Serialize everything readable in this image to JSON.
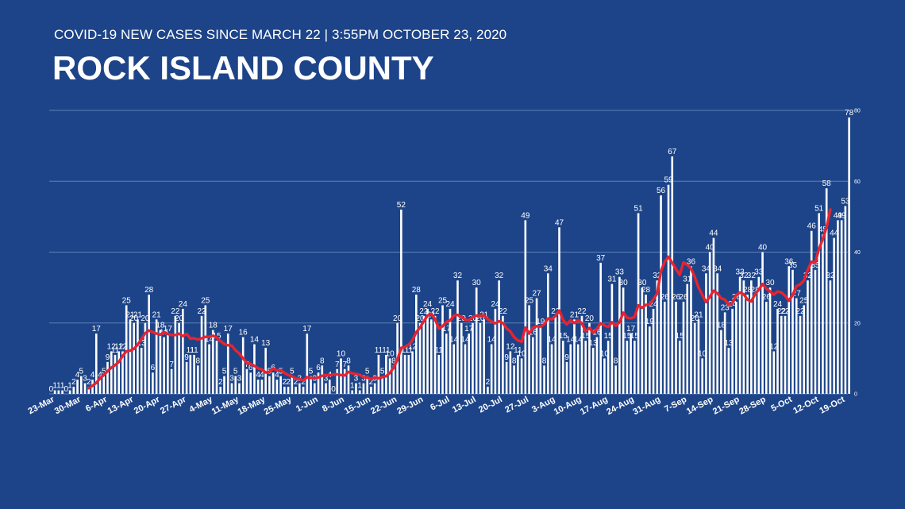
{
  "header": {
    "subtitle": "COVID-19 NEW CASES SINCE MARCH 22 | 3:55PM OCTOBER 23, 2020",
    "title": "ROCK ISLAND COUNTY"
  },
  "colors": {
    "background": "#1d4489",
    "bars": "#ffffff",
    "moving_average": "#e8232f",
    "gridlines": "#5f7fb8"
  },
  "chart_data": {
    "type": "bar",
    "title": "",
    "xlabel": "",
    "ylabel": "",
    "ylim": [
      0,
      80
    ],
    "yticks": [
      0,
      20,
      40,
      60,
      80
    ],
    "grid": true,
    "legend": "none",
    "start_date": "2020-03-22",
    "x_tick_labels": [
      "23-Mar",
      "30-Mar",
      "6-Apr",
      "13-Apr",
      "20-Apr",
      "27-Apr",
      "4-May",
      "11-May",
      "18-May",
      "25-May",
      "1-Jun",
      "8-Jun",
      "15-Jun",
      "22-Jun",
      "29-Jun",
      "6-Jul",
      "13-Jul",
      "20-Jul",
      "27-Jul",
      "3-Aug",
      "10-Aug",
      "17-Aug",
      "24-Aug",
      "31-Aug",
      "7-Sep",
      "14-Sep",
      "21-Sep",
      "28-Sep",
      "5-Oct",
      "12-Oct",
      "19-Oct"
    ],
    "series": [
      {
        "type": "bar",
        "values": [
          0,
          1,
          1,
          1,
          0,
          1,
          2,
          4,
          5,
          3,
          2,
          4,
          17,
          4,
          5,
          9,
          12,
          11,
          12,
          12,
          25,
          21,
          20,
          21,
          13,
          20,
          28,
          6,
          21,
          18,
          16,
          17,
          7,
          22,
          20,
          24,
          9,
          11,
          11,
          8,
          22,
          25,
          14,
          18,
          15,
          2,
          5,
          17,
          3,
          5,
          3,
          16,
          7,
          6,
          14,
          4,
          4,
          13,
          5,
          6,
          4,
          5,
          2,
          2,
          5,
          2,
          3,
          2,
          17,
          5,
          3,
          6,
          8,
          3,
          4,
          0,
          7,
          10,
          7,
          8,
          1,
          3,
          1,
          3,
          5,
          2,
          3,
          11,
          5,
          11,
          10,
          8,
          20,
          52,
          11,
          11,
          12,
          28,
          20,
          22,
          24,
          21,
          22,
          11,
          25,
          17,
          24,
          14,
          32,
          20,
          14,
          17,
          20,
          30,
          20,
          21,
          2,
          14,
          24,
          32,
          22,
          9,
          12,
          8,
          11,
          10,
          49,
          25,
          16,
          27,
          19,
          8,
          34,
          14,
          22,
          47,
          15,
          9,
          14,
          21,
          14,
          22,
          15,
          20,
          13,
          16,
          37,
          10,
          15,
          31,
          8,
          33,
          30,
          15,
          17,
          15,
          51,
          30,
          28,
          19,
          24,
          32,
          56,
          26,
          59,
          67,
          26,
          15,
          26,
          31,
          36,
          20,
          21,
          10,
          34,
          40,
          44,
          34,
          18,
          23,
          13,
          24,
          26,
          33,
          32,
          28,
          32,
          28,
          33,
          40,
          26,
          30,
          12,
          24,
          22,
          22,
          36,
          35,
          27,
          22,
          25,
          32,
          46,
          35,
          51,
          45,
          58,
          32,
          44,
          49,
          49,
          53,
          78
        ],
        "labels_shown": [
          0,
          1,
          1,
          1,
          0,
          1,
          2,
          4,
          5,
          3,
          2,
          4,
          17,
          4,
          5,
          9,
          12,
          11,
          12,
          12,
          25,
          21,
          20,
          21,
          13,
          20,
          28,
          6,
          21,
          18,
          16,
          17,
          7,
          22,
          20,
          24,
          9,
          11,
          11,
          8,
          22,
          25,
          14,
          18,
          15,
          2,
          5,
          17,
          3,
          5,
          3,
          16,
          7,
          6,
          14,
          4,
          4,
          13,
          5,
          6,
          4,
          5,
          2,
          2,
          5,
          2,
          3,
          2,
          17,
          5,
          3,
          6,
          8,
          3,
          4,
          0,
          7,
          10,
          7,
          8,
          1,
          3,
          1,
          3,
          5,
          2,
          3,
          11,
          5,
          11,
          10,
          8,
          20,
          52,
          11,
          11,
          12,
          28,
          20,
          22,
          24,
          21,
          22,
          11,
          25,
          17,
          24,
          14,
          32,
          20,
          14,
          17,
          20,
          30,
          20,
          21,
          2,
          14,
          24,
          32,
          22,
          9,
          12,
          8,
          11,
          10,
          49,
          25,
          16,
          27,
          19,
          8,
          34,
          14,
          22,
          47,
          15,
          9,
          14,
          21,
          14,
          22,
          15,
          20,
          13,
          16,
          37,
          10,
          15,
          31,
          8,
          33,
          30,
          15,
          17,
          15,
          51,
          30,
          28,
          19,
          24,
          32,
          56,
          26,
          59,
          67,
          26,
          15,
          26,
          31,
          36,
          20,
          21,
          10,
          34,
          40,
          44,
          34,
          18,
          23,
          13,
          24,
          26,
          33,
          32,
          28,
          32,
          28,
          33,
          40,
          26,
          30,
          12,
          24,
          22,
          22,
          36,
          35,
          27,
          22,
          25,
          32,
          46,
          35,
          51,
          45,
          58,
          32,
          44,
          49,
          49,
          53,
          78
        ]
      },
      {
        "type": "line",
        "values": [
          null,
          null,
          null,
          null,
          null,
          null,
          null,
          null,
          null,
          null,
          1.6,
          2.3,
          3.1,
          4.4,
          5.3,
          6.4,
          7.4,
          8.1,
          9.0,
          10.7,
          12.0,
          12.2,
          12.7,
          13.9,
          15.5,
          17.1,
          17.9,
          17.4,
          17.0,
          16.7,
          17.4,
          16.9,
          16.6,
          16.6,
          17.0,
          16.3,
          16.9,
          15.6,
          15.7,
          15.3,
          15.7,
          16.1,
          16.1,
          16.4,
          15.9,
          14.9,
          14.1,
          13.7,
          13.6,
          12.3,
          11.4,
          10.0,
          8.7,
          8.5,
          7.9,
          7.2,
          6.9,
          6.0,
          6.2,
          7.2,
          6.6,
          6.7,
          5.9,
          5.3,
          5.0,
          4.3,
          4.2,
          3.8,
          4.7,
          4.5,
          4.4,
          4.6,
          5.1,
          5.3,
          5.2,
          5.5,
          5.5,
          5.3,
          5.2,
          6.2,
          5.8,
          5.6,
          5.4,
          4.7,
          4.6,
          4.1,
          4.7,
          4.4,
          4.7,
          5.0,
          5.9,
          7.4,
          9.6,
          13.0,
          13.2,
          13.9,
          15.1,
          17.4,
          18.7,
          20.5,
          22.1,
          22.6,
          21.1,
          18.4,
          19.1,
          20.3,
          20.7,
          22.1,
          22.3,
          21.7,
          20.9,
          20.8,
          21.6,
          22.1,
          22.0,
          22.1,
          21.1,
          20.4,
          19.9,
          20.5,
          20.0,
          18.5,
          17.6,
          16.0,
          15.1,
          14.7,
          18.7,
          17.0,
          18.7,
          19.1,
          19.0,
          19.6,
          21.3,
          21.0,
          22.0,
          23.5,
          20.9,
          19.6,
          20.8,
          20.0,
          20.8,
          19.9,
          17.7,
          18.6,
          17.2,
          18.4,
          19.9,
          19.3,
          18.9,
          20.2,
          19.2,
          20.2,
          22.9,
          21.5,
          21.3,
          21.7,
          25.0,
          24.3,
          25.1,
          25.3,
          26.7,
          28.3,
          34.6,
          37.3,
          38.7,
          37.0,
          35.2,
          33.6,
          37.1,
          36.4,
          35.3,
          33.0,
          30.0,
          27.9,
          25.9,
          27.4,
          29.1,
          28.4,
          27.0,
          26.6,
          25.1,
          25.6,
          27.9,
          28.6,
          28.1,
          26.6,
          26.1,
          28.1,
          29.4,
          31.0,
          29.7,
          28.9,
          28.0,
          28.9,
          28.6,
          27.7,
          26.3,
          27.9,
          30.4,
          30.9,
          32.0,
          35.0,
          37.3,
          37.1,
          40.9,
          43.7,
          47.0,
          52.0
        ]
      }
    ]
  }
}
